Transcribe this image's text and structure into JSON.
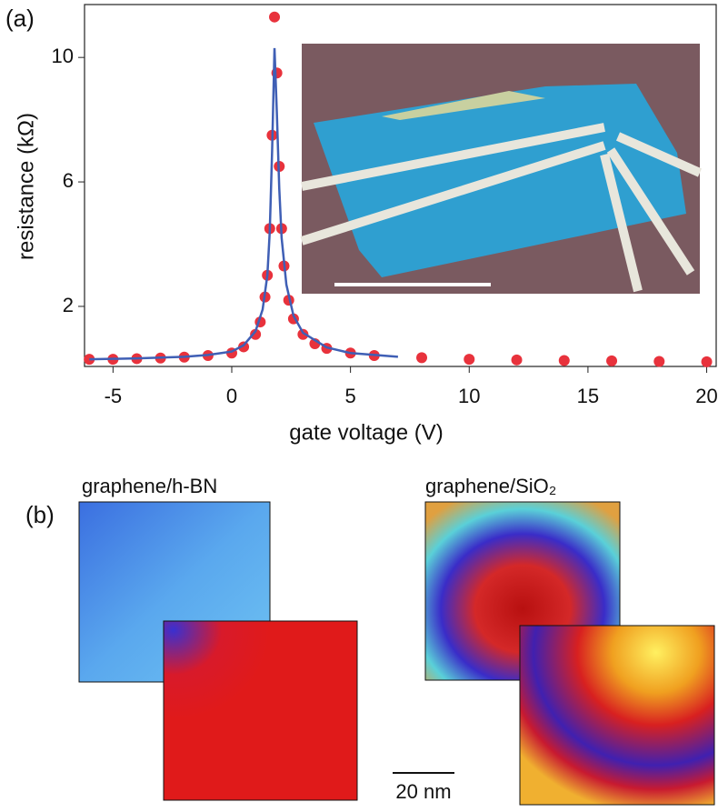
{
  "chart_data": {
    "type": "line",
    "panel_label": "(a)",
    "x_label": "gate voltage (V)",
    "y_label": "resistance (kΩ)",
    "xlim": [
      -6.2,
      20.4
    ],
    "xticks": [
      -5,
      0,
      5,
      10,
      15,
      20
    ],
    "ylim": [
      0.07,
      11.7
    ],
    "yticks": [
      2,
      6,
      10
    ],
    "series": [
      {
        "color": "#e8323c",
        "marker": "circle",
        "x": [
          -6,
          -5,
          -4,
          -3,
          -2,
          -1,
          0,
          0.5,
          1,
          1.2,
          1.4,
          1.5,
          1.6,
          1.7,
          1.8,
          1.9,
          2.0,
          2.1,
          2.2,
          2.4,
          2.6,
          3,
          3.5,
          4,
          5,
          6,
          8,
          10,
          12,
          14,
          16,
          18,
          20
        ],
        "values": [
          0.3,
          0.3,
          0.32,
          0.34,
          0.37,
          0.42,
          0.5,
          0.7,
          1.1,
          1.5,
          2.3,
          3.0,
          4.5,
          7.5,
          11.3,
          9.5,
          6.5,
          4.5,
          3.3,
          2.2,
          1.6,
          1.1,
          0.8,
          0.65,
          0.5,
          0.42,
          0.35,
          0.3,
          0.28,
          0.26,
          0.25,
          0.23,
          0.22
        ]
      },
      {
        "color": "#3f5fb5",
        "marker": "none",
        "x": [
          -6,
          -4,
          -2,
          -1,
          0,
          0.5,
          1,
          1.3,
          1.5,
          1.6,
          1.7,
          1.8,
          1.9,
          2.0,
          2.1,
          2.3,
          2.6,
          3,
          4,
          5,
          7
        ],
        "values": [
          0.3,
          0.33,
          0.38,
          0.44,
          0.55,
          0.75,
          1.2,
          1.9,
          3.0,
          4.4,
          7.0,
          10.3,
          8.2,
          5.8,
          4.2,
          2.7,
          1.7,
          1.15,
          0.68,
          0.5,
          0.38
        ]
      }
    ]
  },
  "panel_b": {
    "label": "(b)",
    "left_title": "graphene/h-BN",
    "right_title": "graphene/SiO₂",
    "scale_bar": "20 nm"
  }
}
